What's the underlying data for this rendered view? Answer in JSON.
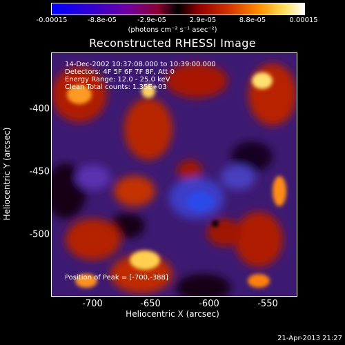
{
  "colorbar": {
    "ticks": [
      "-0.00015",
      "-8.8e-05",
      "-2.9e-05",
      "2.9e-05",
      "8.8e-05",
      "0.00015"
    ],
    "units": "(photons cm⁻² s⁻¹ asec⁻²)"
  },
  "title": "Reconstructed RHESSI Image",
  "info": {
    "time": "14-Dec-2002 10:37:08.000 to 10:39:00.000",
    "detectors": "Detectors: 4F 5F 6F 7F 8F, Att 0",
    "energy": "Energy Range: 12.0 - 25.0 keV",
    "clean": "Clean     Total counts: 1.35E+03",
    "peak": "Position of Peak = [-700,-388]"
  },
  "axes": {
    "xlabel": "Heliocentric X (arcsec)",
    "ylabel": "Heliocentric Y (arcsec)",
    "xticks": [
      "-700",
      "-650",
      "-600",
      "-550"
    ],
    "yticks": [
      "-400",
      "-450",
      "-500"
    ]
  },
  "footer": "21-Apr-2013 21:27"
}
